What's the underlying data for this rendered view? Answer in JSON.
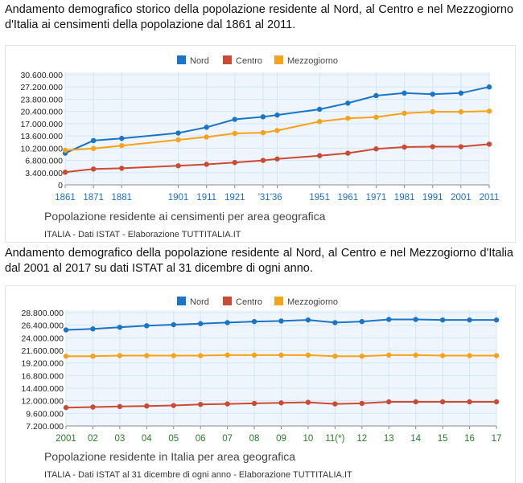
{
  "intro1": "Andamento demografico storico della popolazione residente al Nord, al Centro e nel Mezzogiorno d'Italia ai censimenti della popolazione dal 1861 al 2011.",
  "intro2": "Andamento demografico della popolazione residente al Nord, al Centro e nel Mezzogiorno d'Italia dal 2001 al 2017 su dati ISTAT al 31 dicembre di ogni anno.",
  "colors": {
    "Nord": "#1a75c7",
    "Centro": "#cc4a33",
    "Mezzogiorno": "#f7a21b",
    "grid": "#d4e6f5",
    "plot_bg": "#eef5fc"
  },
  "chart_data": [
    {
      "type": "line",
      "title": "Popolazione residente ai censimenti per area geografica",
      "credit": "ITALIA - Dati ISTAT - Elaborazione TUTTITALIA.IT",
      "legend_position": "top-center",
      "categories": [
        "1861",
        "1871",
        "1881",
        "1901",
        "1911",
        "1921",
        "'31",
        "'36",
        "1951",
        "1961",
        "1971",
        "1981",
        "1991",
        "2001",
        "2011"
      ],
      "x_tick_labels": [
        "1861",
        "1871",
        "1881",
        "1901",
        "1911",
        "1921",
        "'31'36",
        "1951",
        "1961",
        "1971",
        "1981",
        "1991",
        "2001",
        "2011"
      ],
      "x": [
        1861,
        1871,
        1881,
        1901,
        1911,
        1921,
        1931,
        1936,
        1951,
        1961,
        1971,
        1981,
        1991,
        2001,
        2011
      ],
      "y_ticks": [
        0,
        3400000,
        6800000,
        10200000,
        13600000,
        17000000,
        20400000,
        23800000,
        27200000,
        30600000
      ],
      "y_tick_labels": [
        "0",
        "3.400.000",
        "6.800.000",
        "10.200.000",
        "13.600.000",
        "17.000.000",
        "20.400.000",
        "23.800.000",
        "27.200.000",
        "30.600.000"
      ],
      "ylim": [
        0,
        30600000
      ],
      "series": [
        {
          "name": "Nord",
          "values": [
            8800000,
            12300000,
            12900000,
            14400000,
            16000000,
            18200000,
            18900000,
            19400000,
            21000000,
            22700000,
            24800000,
            25500000,
            25200000,
            25500000,
            27200000
          ]
        },
        {
          "name": "Centro",
          "values": [
            3500000,
            4400000,
            4600000,
            5300000,
            5700000,
            6200000,
            6800000,
            7200000,
            8100000,
            8800000,
            10000000,
            10500000,
            10600000,
            10600000,
            11300000
          ]
        },
        {
          "name": "Mezzogiorno",
          "values": [
            9600000,
            10100000,
            10900000,
            12500000,
            13300000,
            14300000,
            14500000,
            15100000,
            17600000,
            18500000,
            18800000,
            19900000,
            20300000,
            20300000,
            20500000
          ]
        }
      ]
    },
    {
      "type": "line",
      "title": "Popolazione residente in Italia per area geografica",
      "credit": "ITALIA - Dati ISTAT al 31 dicembre di ogni anno - Elaborazione TUTTITALIA.IT",
      "legend_position": "top-center",
      "categories": [
        "2001",
        "02",
        "03",
        "04",
        "05",
        "06",
        "07",
        "08",
        "09",
        "10",
        "11(*)",
        "12",
        "13",
        "14",
        "15",
        "16",
        "17"
      ],
      "x_tick_labels": [
        "2001",
        "02",
        "03",
        "04",
        "05",
        "06",
        "07",
        "08",
        "09",
        "10",
        "11(*)",
        "12",
        "13",
        "14",
        "15",
        "16",
        "17"
      ],
      "y_ticks": [
        7200000,
        9600000,
        12000000,
        14400000,
        16800000,
        19200000,
        21600000,
        24000000,
        26400000,
        28800000
      ],
      "y_tick_labels": [
        "7.200.000",
        "9.600.000",
        "12.000.000",
        "14.400.000",
        "16.800.000",
        "19.200.000",
        "21.600.000",
        "24.000.000",
        "26.400.000",
        "28.800.000"
      ],
      "ylim": [
        7200000,
        28800000
      ],
      "series": [
        {
          "name": "Nord",
          "values": [
            25500000,
            25700000,
            26000000,
            26300000,
            26500000,
            26700000,
            26900000,
            27100000,
            27200000,
            27400000,
            26900000,
            27100000,
            27500000,
            27500000,
            27400000,
            27400000,
            27400000
          ]
        },
        {
          "name": "Centro",
          "values": [
            10700000,
            10800000,
            10900000,
            11000000,
            11100000,
            11300000,
            11400000,
            11500000,
            11600000,
            11700000,
            11400000,
            11500000,
            11800000,
            11800000,
            11800000,
            11800000,
            11800000
          ]
        },
        {
          "name": "Mezzogiorno",
          "values": [
            20500000,
            20500000,
            20600000,
            20600000,
            20600000,
            20600000,
            20700000,
            20700000,
            20700000,
            20700000,
            20500000,
            20500000,
            20700000,
            20700000,
            20600000,
            20600000,
            20600000
          ]
        }
      ]
    }
  ]
}
